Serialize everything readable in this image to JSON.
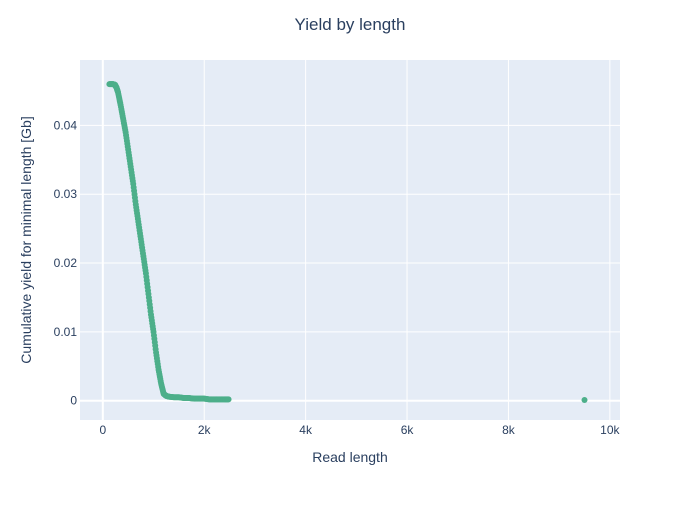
{
  "chart_data": {
    "type": "scatter",
    "title": "Yield by length",
    "xlabel": "Read length",
    "ylabel": "Cumulative yield for minimal length [Gb]",
    "xlim": [
      -450,
      10200
    ],
    "ylim": [
      -0.0028,
      0.0495
    ],
    "xticks": [
      0,
      2000,
      4000,
      6000,
      8000,
      10000
    ],
    "xtick_labels": [
      "0",
      "2k",
      "4k",
      "6k",
      "8k",
      "10k"
    ],
    "yticks": [
      0,
      0.01,
      0.02,
      0.03,
      0.04
    ],
    "ytick_labels": [
      "0",
      "0.01",
      "0.02",
      "0.03",
      "0.04"
    ],
    "grid": true,
    "legend": false,
    "colors": {
      "marker": "#4daf8a",
      "plot_bg": "#e5ecf6",
      "grid": "#ffffff",
      "text": "#2a3f5f"
    },
    "series": [
      {
        "points": [
          [
            130,
            0.046
          ],
          [
            200,
            0.046
          ],
          [
            240,
            0.0459
          ],
          [
            270,
            0.0455
          ],
          [
            300,
            0.0448
          ],
          [
            350,
            0.043
          ],
          [
            400,
            0.041
          ],
          [
            450,
            0.039
          ],
          [
            500,
            0.0365
          ],
          [
            550,
            0.034
          ],
          [
            600,
            0.0315
          ],
          [
            650,
            0.0285
          ],
          [
            700,
            0.026
          ],
          [
            750,
            0.0235
          ],
          [
            800,
            0.021
          ],
          [
            850,
            0.0185
          ],
          [
            900,
            0.0155
          ],
          [
            950,
            0.0125
          ],
          [
            1000,
            0.01
          ],
          [
            1050,
            0.007
          ],
          [
            1100,
            0.0045
          ],
          [
            1150,
            0.0025
          ],
          [
            1200,
            0.001
          ],
          [
            1250,
            0.0007
          ],
          [
            1300,
            0.0006
          ],
          [
            1400,
            0.0005
          ],
          [
            1500,
            0.0005
          ],
          [
            1600,
            0.0004
          ],
          [
            1700,
            0.0004
          ],
          [
            1800,
            0.0003
          ],
          [
            1900,
            0.0003
          ],
          [
            2000,
            0.0003
          ],
          [
            2100,
            0.0002
          ],
          [
            2200,
            0.0002
          ],
          [
            2300,
            0.0002
          ],
          [
            2400,
            0.0002
          ],
          [
            2480,
            0.0002
          ],
          [
            9500,
            0.0001
          ]
        ]
      }
    ]
  }
}
